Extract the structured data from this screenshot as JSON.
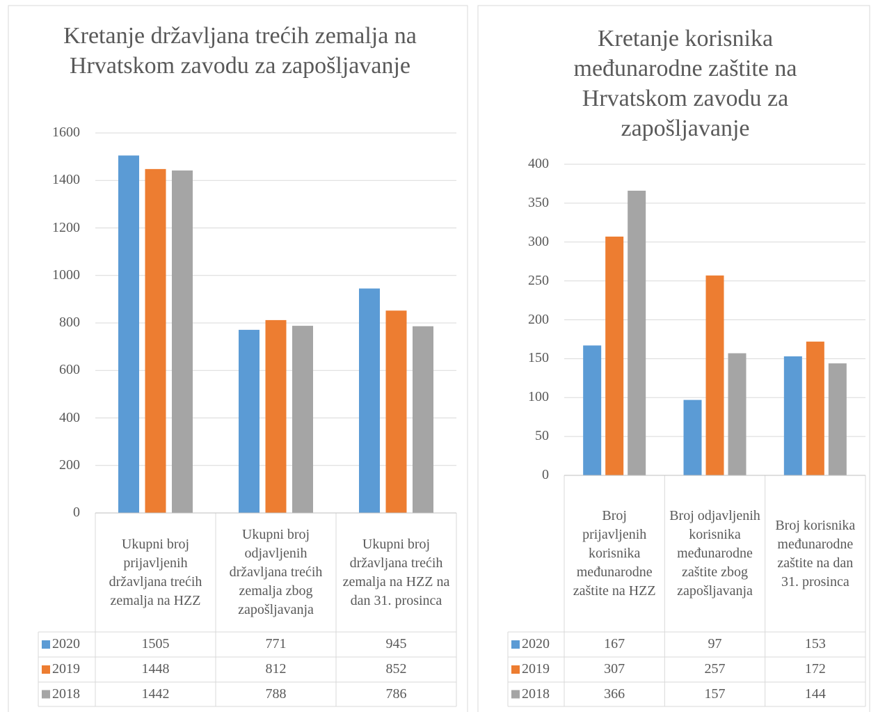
{
  "chart_data": [
    {
      "type": "bar",
      "title": "Kretanje državljana trećih zemalja na Hrvatskom zavodu za zapošljavanje",
      "categories": [
        "Ukupni broj prijavljenih državljana trećih zemalja na HZZ",
        "Ukupni broj odjavljenih državljana trećih zemalja zbog zapošljavanja",
        "Ukupni broj državljana trećih zemalja na HZZ na dan 31. prosinca"
      ],
      "series": [
        {
          "name": "2020",
          "color": "#5b9bd5",
          "values": [
            1505,
            771,
            945
          ]
        },
        {
          "name": "2019",
          "color": "#ed7d31",
          "values": [
            1448,
            812,
            852
          ]
        },
        {
          "name": "2018",
          "color": "#a5a5a5",
          "values": [
            1442,
            788,
            786
          ]
        }
      ],
      "ylim": [
        0,
        1600
      ],
      "yticks": [
        0,
        200,
        400,
        600,
        800,
        1000,
        1200,
        1400,
        1600
      ],
      "grid": true,
      "data_table": true
    },
    {
      "type": "bar",
      "title": "Kretanje korisnika međunarodne zaštite na Hrvatskom zavodu za zapošljavanje",
      "categories": [
        "Broj prijavljenih korisnika međunarodne zaštite na HZZ",
        "Broj odjavljenih korisnika međunarodne zaštite zbog zapošljavanja",
        "Broj korisnika međunarodne zaštite na dan 31. prosinca"
      ],
      "series": [
        {
          "name": "2020",
          "color": "#5b9bd5",
          "values": [
            167,
            97,
            153
          ]
        },
        {
          "name": "2019",
          "color": "#ed7d31",
          "values": [
            307,
            257,
            172
          ]
        },
        {
          "name": "2018",
          "color": "#a5a5a5",
          "values": [
            366,
            157,
            144
          ]
        }
      ],
      "ylim": [
        0,
        400
      ],
      "yticks": [
        0,
        50,
        100,
        150,
        200,
        250,
        300,
        350,
        400
      ],
      "grid": true,
      "data_table": true
    }
  ]
}
